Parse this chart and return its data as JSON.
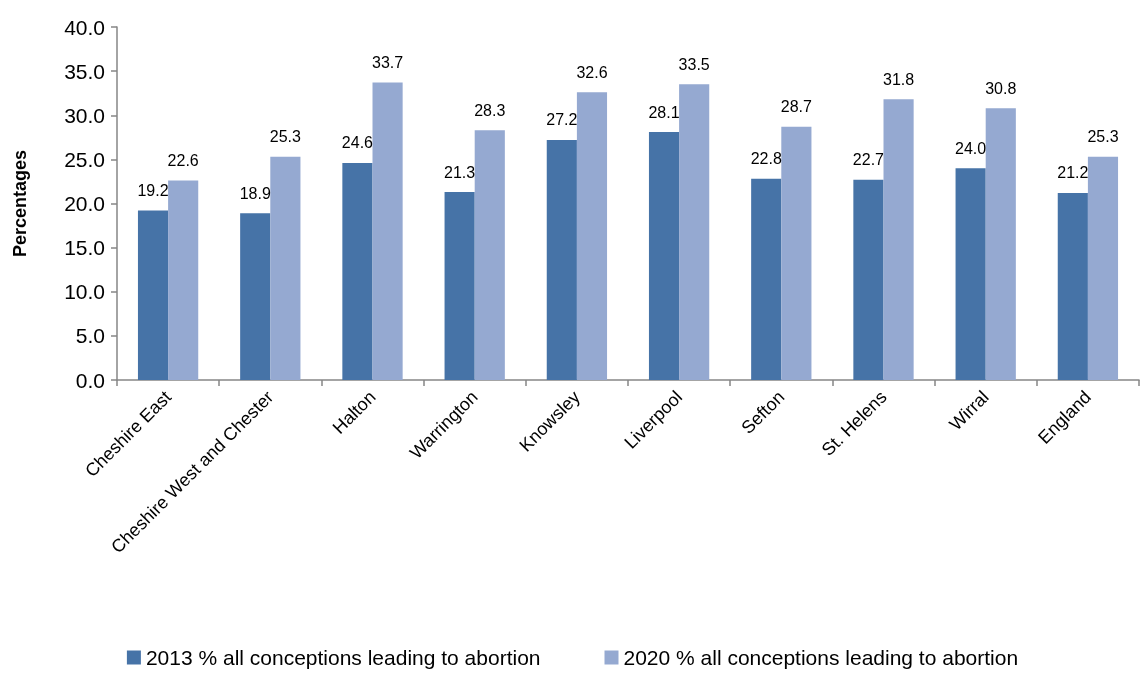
{
  "chart_data": {
    "type": "bar",
    "ylabel": "Percentages",
    "categories": [
      "Cheshire East",
      "Cheshire West and Chester",
      "Halton",
      "Warrington",
      "Knowsley",
      "Liverpool",
      "Sefton",
      "St. Helens",
      "Wirral",
      "England"
    ],
    "series": [
      {
        "name": "2013 % all conceptions leading to abortion",
        "color": "#4673a7",
        "values": [
          19.2,
          18.9,
          24.6,
          21.3,
          27.2,
          28.1,
          22.8,
          22.7,
          24.0,
          21.2
        ],
        "value_labels": [
          "19.2",
          "18.9",
          "24.6",
          "21.3",
          "27.2",
          "28.1",
          "22.8",
          "22.7",
          "24.0",
          "21.2"
        ]
      },
      {
        "name": "2020 % all conceptions leading to abortion",
        "color": "#95a9d1",
        "values": [
          22.6,
          25.3,
          33.7,
          28.3,
          32.6,
          33.5,
          28.7,
          31.8,
          30.8,
          25.3
        ],
        "value_labels": [
          "22.6",
          "25.3",
          "33.7",
          "28.3",
          "32.6",
          "33.5",
          "28.7",
          "31.8",
          "30.8",
          "25.3"
        ]
      }
    ],
    "ylim": [
      0,
      40
    ],
    "yticks": [
      {
        "value": 0,
        "label": "0.0"
      },
      {
        "value": 5,
        "label": "5.0"
      },
      {
        "value": 10,
        "label": "10.0"
      },
      {
        "value": 15,
        "label": "15.0"
      },
      {
        "value": 20,
        "label": "20.0"
      },
      {
        "value": 25,
        "label": "25.0"
      },
      {
        "value": 30,
        "label": "30.0"
      },
      {
        "value": 35,
        "label": "35.0"
      },
      {
        "value": 40,
        "label": "40.0"
      }
    ],
    "grid": false,
    "legend": "bottom"
  }
}
